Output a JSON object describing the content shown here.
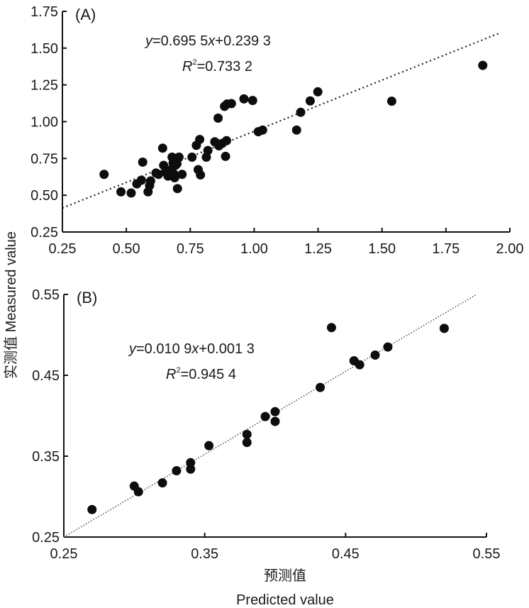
{
  "chart_data": [
    {
      "type": "scatter",
      "panel_label": "(A)",
      "equation": {
        "y": "y",
        "rest1": "=0.695 5",
        "x": "x",
        "rest2": "+0.239 3"
      },
      "r2": {
        "R": "R",
        "sup": "2",
        "rest": "=0.733 2"
      },
      "trend": {
        "slope": 0.6955,
        "intercept": 0.2393,
        "x_range": [
          0.25,
          1.96
        ],
        "style": "dotted"
      },
      "xlim": [
        0.25,
        2.0
      ],
      "ylim": [
        0.25,
        1.75
      ],
      "xticks": [
        "0.25",
        "0.50",
        "0.75",
        "1.00",
        "1.25",
        "1.50",
        "1.75",
        "2.00"
      ],
      "yticks": [
        "0.25",
        "0.50",
        "0.75",
        "1.00",
        "1.25",
        "1.50",
        "1.75"
      ],
      "points": [
        [
          0.413,
          0.642
        ],
        [
          0.479,
          0.523
        ],
        [
          0.519,
          0.515
        ],
        [
          0.541,
          0.577
        ],
        [
          0.559,
          0.602
        ],
        [
          0.564,
          0.725
        ],
        [
          0.585,
          0.523
        ],
        [
          0.591,
          0.566
        ],
        [
          0.595,
          0.597
        ],
        [
          0.616,
          0.651
        ],
        [
          0.626,
          0.642
        ],
        [
          0.642,
          0.82
        ],
        [
          0.646,
          0.703
        ],
        [
          0.653,
          0.658
        ],
        [
          0.663,
          0.63
        ],
        [
          0.672,
          0.671
        ],
        [
          0.679,
          0.759
        ],
        [
          0.683,
          0.719
        ],
        [
          0.685,
          0.646
        ],
        [
          0.689,
          0.619
        ],
        [
          0.692,
          0.703
        ],
        [
          0.698,
          0.714
        ],
        [
          0.7,
          0.545
        ],
        [
          0.706,
          0.759
        ],
        [
          0.718,
          0.642
        ],
        [
          0.757,
          0.759
        ],
        [
          0.774,
          0.839
        ],
        [
          0.781,
          0.674
        ],
        [
          0.787,
          0.879
        ],
        [
          0.79,
          0.638
        ],
        [
          0.813,
          0.759
        ],
        [
          0.819,
          0.804
        ],
        [
          0.846,
          0.863
        ],
        [
          0.859,
          1.024
        ],
        [
          0.862,
          0.836
        ],
        [
          0.875,
          0.852
        ],
        [
          0.884,
          1.104
        ],
        [
          0.888,
          0.764
        ],
        [
          0.892,
          0.871
        ],
        [
          0.894,
          1.12
        ],
        [
          0.911,
          1.123
        ],
        [
          0.96,
          1.155
        ],
        [
          0.994,
          1.144
        ],
        [
          1.016,
          0.932
        ],
        [
          1.033,
          0.943
        ],
        [
          1.166,
          0.943
        ],
        [
          1.182,
          1.064
        ],
        [
          1.219,
          1.141
        ],
        [
          1.249,
          1.203
        ],
        [
          1.538,
          1.139
        ],
        [
          1.894,
          1.383
        ]
      ]
    },
    {
      "type": "scatter",
      "panel_label": "(B)",
      "equation": {
        "y": "y",
        "rest1": "=0.010 9",
        "x": "x",
        "rest2": "+0.001 3"
      },
      "r2": {
        "R": "R",
        "sup": "2",
        "rest": "=0.945 4"
      },
      "trend": {
        "x_range": [
          0.25,
          0.543
        ],
        "y_range": [
          0.25,
          0.55
        ],
        "style": "dotted"
      },
      "xlim": [
        0.25,
        0.55
      ],
      "ylim": [
        0.25,
        0.55
      ],
      "xticks": [
        "0.25",
        "0.35",
        "0.45",
        "0.55"
      ],
      "yticks": [
        "0.25",
        "0.35",
        "0.45",
        "0.55"
      ],
      "points": [
        [
          0.27,
          0.284
        ],
        [
          0.3,
          0.313
        ],
        [
          0.303,
          0.306
        ],
        [
          0.32,
          0.317
        ],
        [
          0.33,
          0.332
        ],
        [
          0.34,
          0.342
        ],
        [
          0.34,
          0.334
        ],
        [
          0.353,
          0.363
        ],
        [
          0.38,
          0.377
        ],
        [
          0.38,
          0.367
        ],
        [
          0.393,
          0.399
        ],
        [
          0.4,
          0.405
        ],
        [
          0.4,
          0.393
        ],
        [
          0.432,
          0.435
        ],
        [
          0.44,
          0.509
        ],
        [
          0.456,
          0.468
        ],
        [
          0.46,
          0.463
        ],
        [
          0.471,
          0.475
        ],
        [
          0.48,
          0.485
        ],
        [
          0.52,
          0.508
        ]
      ]
    }
  ],
  "labels": {
    "ylabel": "实测值 Measured value",
    "xlabel_cn": "预测值",
    "xlabel_en": "Predicted value"
  }
}
